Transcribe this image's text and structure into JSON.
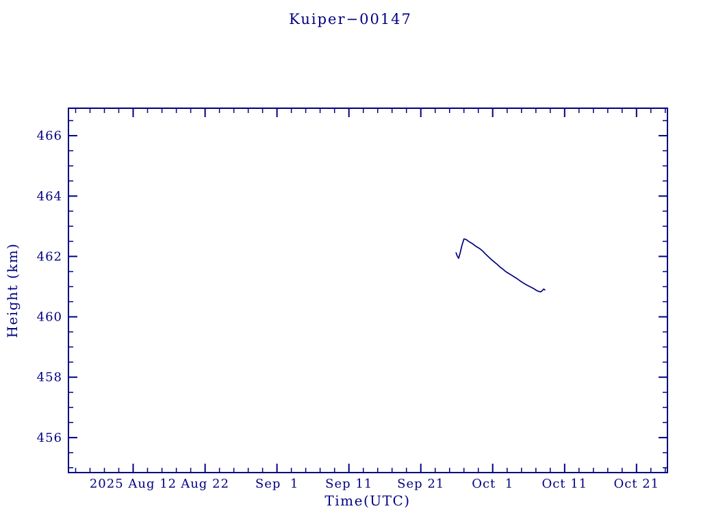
{
  "title": "Kuiper−00147",
  "axes": {
    "ylabel": "Height (km)",
    "xlabel": "Time(UTC)"
  },
  "colors": {
    "accent": "#000080",
    "background": "#ffffff"
  },
  "chart_data": {
    "type": "line",
    "title": "Kuiper-00147",
    "xlabel": "Time(UTC)",
    "ylabel": "Height (km)",
    "grid": false,
    "legend": false,
    "x_reference_date": "2025-08-12",
    "xlim_days": [
      -9,
      74.3
    ],
    "ylim": [
      454.84,
      466.91
    ],
    "x_tick_days": [
      0,
      10,
      20,
      30,
      40,
      50,
      60,
      70
    ],
    "x_tick_labels": [
      "2025 Aug 12",
      "Aug 22",
      "Sep  1",
      "Sep 11",
      "Sep 21",
      "Oct  1",
      "Oct 11",
      "Oct 21"
    ],
    "x_minor_step_days": 2,
    "y_ticks": [
      456,
      458,
      460,
      462,
      464,
      466
    ],
    "y_minor_step": 0.5,
    "series": [
      {
        "name": "height_km",
        "color": "#000080",
        "points": [
          [
            44.9,
            462.12
          ],
          [
            45.05,
            462.02
          ],
          [
            45.25,
            461.94
          ],
          [
            45.45,
            462.1
          ],
          [
            45.7,
            462.35
          ],
          [
            46.0,
            462.58
          ],
          [
            46.3,
            462.56
          ],
          [
            46.7,
            462.49
          ],
          [
            47.2,
            462.42
          ],
          [
            47.7,
            462.33
          ],
          [
            48.2,
            462.26
          ],
          [
            48.6,
            462.18
          ],
          [
            49.0,
            462.08
          ],
          [
            49.4,
            461.99
          ],
          [
            49.8,
            461.9
          ],
          [
            50.2,
            461.82
          ],
          [
            50.6,
            461.74
          ],
          [
            51.0,
            461.65
          ],
          [
            51.4,
            461.58
          ],
          [
            51.8,
            461.5
          ],
          [
            52.2,
            461.44
          ],
          [
            52.6,
            461.38
          ],
          [
            53.0,
            461.32
          ],
          [
            53.4,
            461.26
          ],
          [
            53.8,
            461.19
          ],
          [
            54.2,
            461.13
          ],
          [
            54.6,
            461.07
          ],
          [
            55.0,
            461.02
          ],
          [
            55.4,
            460.97
          ],
          [
            55.8,
            460.92
          ],
          [
            56.1,
            460.87
          ],
          [
            56.4,
            460.84
          ],
          [
            56.7,
            460.83
          ],
          [
            56.9,
            460.87
          ],
          [
            57.1,
            460.92
          ],
          [
            57.25,
            460.89
          ]
        ]
      }
    ]
  }
}
